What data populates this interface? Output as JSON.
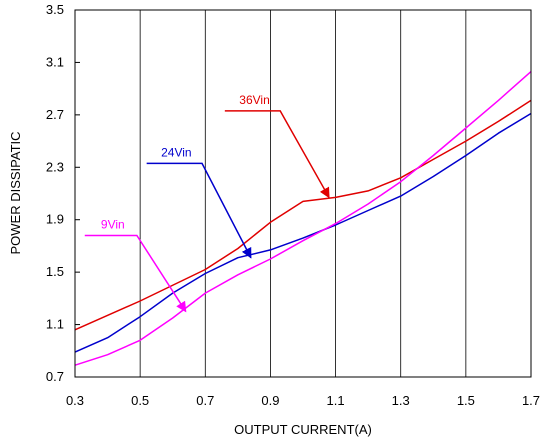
{
  "chart_data": {
    "type": "line",
    "xlabel": "OUTPUT CURRENT(A)",
    "ylabel": "POWER DISSIPATIC",
    "xlim": [
      0.3,
      1.7
    ],
    "ylim": [
      0.7,
      3.5
    ],
    "x_ticks": [
      "0.3",
      "0.5",
      "0.7",
      "0.9",
      "1.1",
      "1.3",
      "1.5",
      "1.7"
    ],
    "y_ticks": [
      "0.7",
      "1.1",
      "1.5",
      "1.9",
      "2.3",
      "2.7",
      "3.1",
      "3.5"
    ],
    "grid": "vertical",
    "series": [
      {
        "name": "36Vin",
        "color": "#e00000",
        "x": [
          0.3,
          0.5,
          0.7,
          0.8,
          0.9,
          1.0,
          1.1,
          1.2,
          1.3,
          1.4,
          1.5,
          1.6,
          1.7
        ],
        "y": [
          1.06,
          1.28,
          1.52,
          1.68,
          1.88,
          2.04,
          2.07,
          2.12,
          2.22,
          2.36,
          2.5,
          2.65,
          2.81
        ]
      },
      {
        "name": "24Vin",
        "color": "#0000cc",
        "x": [
          0.3,
          0.4,
          0.5,
          0.6,
          0.7,
          0.8,
          0.9,
          1.0,
          1.1,
          1.2,
          1.3,
          1.4,
          1.5,
          1.6,
          1.7
        ],
        "y": [
          0.89,
          1.0,
          1.16,
          1.34,
          1.49,
          1.61,
          1.67,
          1.76,
          1.86,
          1.97,
          2.08,
          2.23,
          2.39,
          2.56,
          2.71
        ]
      },
      {
        "name": "9Vin",
        "color": "#ff00ff",
        "x": [
          0.3,
          0.4,
          0.5,
          0.6,
          0.7,
          0.8,
          0.9,
          1.0,
          1.1,
          1.2,
          1.3,
          1.4,
          1.5,
          1.6,
          1.7
        ],
        "y": [
          0.79,
          0.87,
          0.98,
          1.15,
          1.34,
          1.48,
          1.6,
          1.74,
          1.87,
          2.02,
          2.19,
          2.39,
          2.6,
          2.81,
          3.03
        ]
      }
    ],
    "annotations": [
      {
        "label": "36Vin",
        "color": "#e00000",
        "line_from": [
          0.76,
          2.73
        ],
        "line_mid": [
          0.93,
          2.73
        ],
        "arrow_to": [
          1.08,
          2.07
        ]
      },
      {
        "label": "24Vin",
        "color": "#0000cc",
        "line_from": [
          0.52,
          2.33
        ],
        "line_mid": [
          0.69,
          2.33
        ],
        "arrow_to": [
          0.84,
          1.61
        ]
      },
      {
        "label": "9Vin",
        "color": "#ff00ff",
        "line_from": [
          0.33,
          1.78
        ],
        "line_mid": [
          0.49,
          1.78
        ],
        "arrow_to": [
          0.64,
          1.2
        ]
      }
    ]
  }
}
